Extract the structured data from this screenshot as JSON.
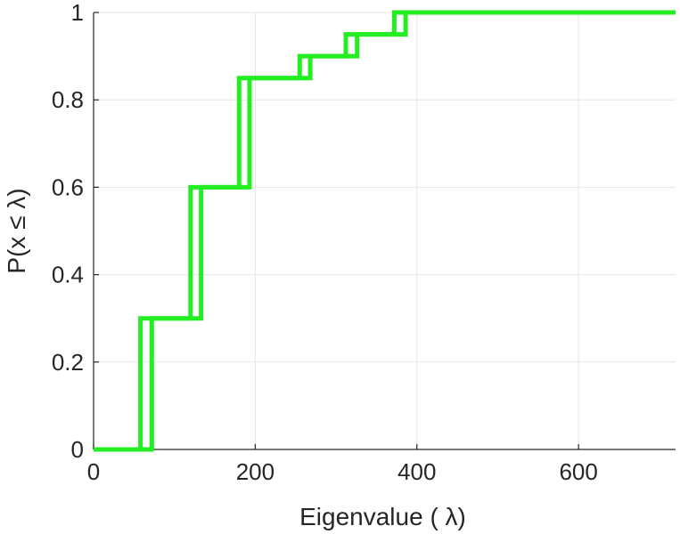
{
  "chart_data": {
    "type": "line",
    "title": "",
    "xlabel": "Eigenvalue (  λ)",
    "ylabel": "P(x ≤ λ)",
    "xlim": [
      0,
      720
    ],
    "ylim": [
      0,
      1
    ],
    "xticks": [
      0,
      200,
      400,
      600
    ],
    "yticks": [
      0,
      0.2,
      0.4,
      0.6,
      0.8,
      1
    ],
    "xtick_labels": [
      "0",
      "200",
      "400",
      "600"
    ],
    "ytick_labels": [
      "0",
      "0.2",
      "0.4",
      "0.6",
      "0.8",
      "1"
    ],
    "grid": true,
    "legend": "none",
    "series": [
      {
        "style": "step",
        "color": "#22ee22",
        "x": [
          0,
          58,
          58,
          120,
          120,
          180,
          180,
          255,
          255,
          312,
          312,
          372,
          372,
          720
        ],
        "y": [
          0,
          0,
          0.3,
          0.3,
          0.6,
          0.6,
          0.85,
          0.85,
          0.9,
          0.9,
          0.95,
          0.95,
          1,
          1
        ]
      },
      {
        "style": "step",
        "color": "#22ee22",
        "x": [
          0,
          72,
          72,
          133,
          133,
          193,
          193,
          268,
          268,
          326,
          326,
          386,
          386,
          720
        ],
        "y": [
          0,
          0,
          0.3,
          0.3,
          0.6,
          0.6,
          0.85,
          0.85,
          0.9,
          0.9,
          0.95,
          0.95,
          1,
          1
        ]
      }
    ]
  }
}
